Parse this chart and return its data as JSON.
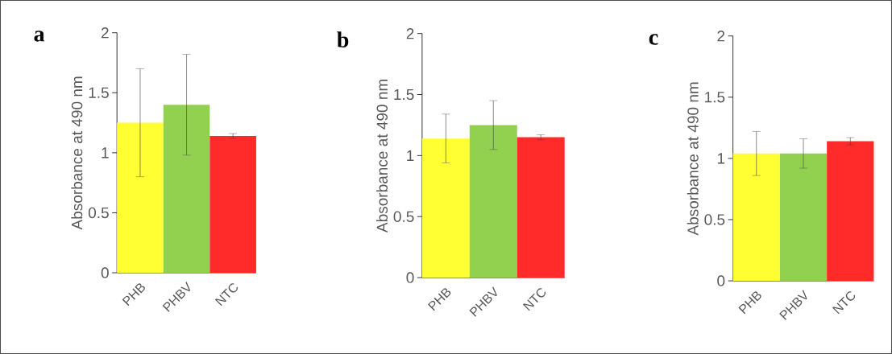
{
  "chart_data": [
    {
      "type": "bar",
      "title": "a",
      "ylabel": "Absorbance at 490 nm",
      "categories": [
        "PHB",
        "PHBV",
        "NTC"
      ],
      "values": [
        1.25,
        1.4,
        1.14
      ],
      "errors": [
        0.45,
        0.42,
        0.02
      ],
      "colors": [
        "#ffff33",
        "#92d050",
        "#ff2a2a"
      ],
      "ylim": [
        0,
        2
      ],
      "yticks": [
        0,
        0.5,
        1,
        1.5,
        2
      ]
    },
    {
      "type": "bar",
      "title": "b",
      "ylabel": "Absorbance at 490 nm",
      "categories": [
        "PHB",
        "PHBV",
        "NTC"
      ],
      "values": [
        1.14,
        1.25,
        1.15
      ],
      "errors": [
        0.2,
        0.2,
        0.02
      ],
      "colors": [
        "#ffff33",
        "#92d050",
        "#ff2a2a"
      ],
      "ylim": [
        0,
        2
      ],
      "yticks": [
        0,
        0.5,
        1,
        1.5,
        2
      ]
    },
    {
      "type": "bar",
      "title": "c",
      "ylabel": "Absorbance at 490 nm",
      "categories": [
        "PHB",
        "PHBV",
        "NTC"
      ],
      "values": [
        1.04,
        1.04,
        1.14
      ],
      "errors": [
        0.18,
        0.12,
        0.03
      ],
      "colors": [
        "#ffff33",
        "#92d050",
        "#ff2a2a"
      ],
      "ylim": [
        0,
        2
      ],
      "yticks": [
        0,
        0.5,
        1,
        1.5,
        2
      ]
    }
  ]
}
